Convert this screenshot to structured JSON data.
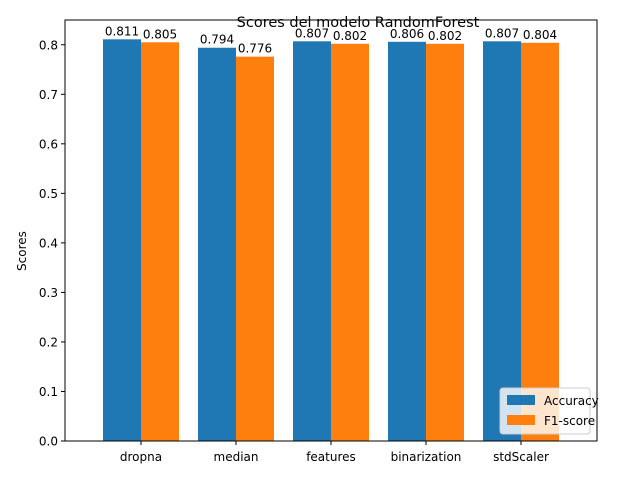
{
  "chart_data": {
    "type": "bar",
    "title": "Scores del modelo RandomForest",
    "xlabel": "",
    "ylabel": "Scores",
    "categories": [
      "dropna",
      "median",
      "features",
      "binarization",
      "stdScaler"
    ],
    "series": [
      {
        "name": "Accuracy",
        "color": "#1f77b4",
        "values": [
          0.811,
          0.794,
          0.807,
          0.806,
          0.807
        ],
        "labels": [
          "0.811",
          "0.794",
          "0.807",
          "0.806",
          "0.807"
        ]
      },
      {
        "name": "F1-score",
        "color": "#ff7f0e",
        "values": [
          0.805,
          0.776,
          0.802,
          0.802,
          0.804
        ],
        "labels": [
          "0.805",
          "0.776",
          "0.802",
          "0.802",
          "0.804"
        ]
      }
    ],
    "ylim": [
      0,
      0.85
    ],
    "yticks": [
      0.0,
      0.1,
      0.2,
      0.3,
      0.4,
      0.5,
      0.6,
      0.7,
      0.8
    ],
    "ytick_labels": [
      "0.0",
      "0.1",
      "0.2",
      "0.3",
      "0.4",
      "0.5",
      "0.6",
      "0.7",
      "0.8"
    ],
    "grid": false,
    "legend_position": "lower right"
  }
}
